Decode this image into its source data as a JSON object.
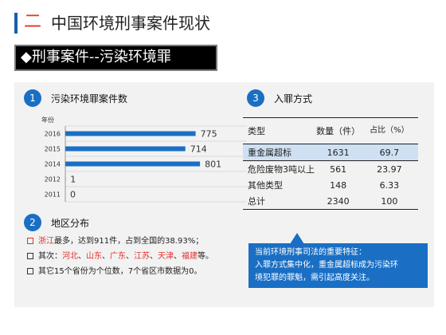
{
  "header": {
    "number": "二",
    "title": "中国环境刑事案件现状"
  },
  "banner": {
    "text": "◆刑事案件--污染环境罪"
  },
  "section1": {
    "number": "1",
    "title": "污染环境罪案件数",
    "year_unit": "年份"
  },
  "chart_data": {
    "type": "bar",
    "orientation": "horizontal",
    "categories": [
      "2016",
      "2015",
      "2014",
      "2012",
      "2011"
    ],
    "values": [
      775,
      714,
      801,
      1,
      0
    ],
    "color": "#1a6fc4",
    "xlim": [
      0,
      900
    ],
    "grid": true
  },
  "section2": {
    "number": "2",
    "title": "地区分布",
    "line1": {
      "province": "浙江",
      "text": "最多，达到911件，占到全国的38.93%；"
    },
    "line2": {
      "prefix": "其次：",
      "provinces": [
        "河北",
        "山东",
        "广东",
        "江苏",
        "天津",
        "福建"
      ],
      "separators": [
        "、",
        "、",
        "、",
        "、",
        "、"
      ],
      "suffix": "等。"
    },
    "line3": {
      "text": "其它15个省份为个位数，7个省区市数据为0。"
    }
  },
  "section3": {
    "number": "3",
    "title": "入罪方式",
    "columns": {
      "type": "类型",
      "count": "数量（件）",
      "ratio": "占比（%）"
    },
    "rows": [
      {
        "type": "重金属超标",
        "count": "1631",
        "ratio": "69.7"
      },
      {
        "type": "危险废物3吨以上",
        "count": "561",
        "ratio": "23.97"
      },
      {
        "type": "其他类型",
        "count": "148",
        "ratio": "6.33"
      },
      {
        "type": "总计",
        "count": "2340",
        "ratio": "100"
      }
    ]
  },
  "callout": {
    "line1": "当前环境刑事司法的重要特征：",
    "line2": "入罪方式集中化，重金属超标成为污染环",
    "line3": "境犯罪的罪魁，需引起高度关注。"
  },
  "colors": {
    "accent": "#1a6fc4",
    "red": "#e4302b",
    "header_bar": "#1a5ea8"
  }
}
